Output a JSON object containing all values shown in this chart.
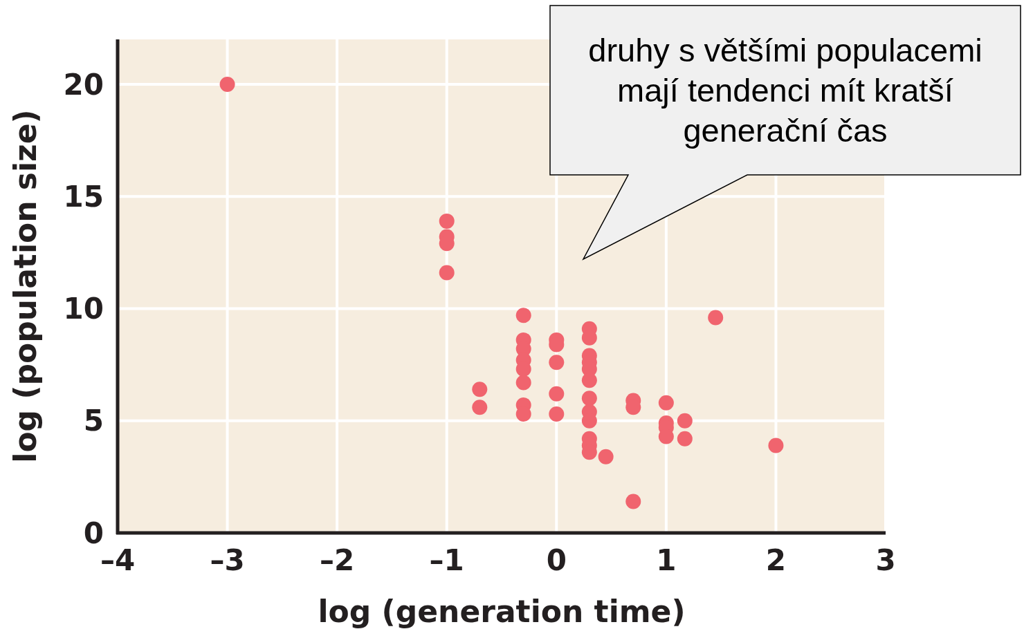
{
  "chart_data": {
    "type": "scatter",
    "xlabel": "log (generation time)",
    "ylabel": "log (population size)",
    "annotations": [
      "druhy s většími populacemi mají tendenci mít kratší generační čas"
    ],
    "x": [
      -3,
      -1,
      -1,
      -1,
      -1,
      -0.7,
      -0.7,
      -0.3,
      -0.3,
      -0.3,
      -0.3,
      -0.3,
      -0.3,
      -0.3,
      -0.3,
      0,
      0,
      0,
      0,
      0,
      0.3,
      0.3,
      0.3,
      0.3,
      0.3,
      0.3,
      0.3,
      0.3,
      0.3,
      0.3,
      0.3,
      0.3,
      0.45,
      0.7,
      0.7,
      0.7,
      1,
      1,
      1,
      1,
      1.17,
      1.17,
      1.45,
      2
    ],
    "values": [
      20,
      13.9,
      13.2,
      12.9,
      11.6,
      6.4,
      5.6,
      9.7,
      8.6,
      8.2,
      7.7,
      7.3,
      6.7,
      5.7,
      5.3,
      8.6,
      8.4,
      7.6,
      6.2,
      5.3,
      9.1,
      8.7,
      7.9,
      7.6,
      7.3,
      6.8,
      6.0,
      5.4,
      5.0,
      4.2,
      3.9,
      3.6,
      3.4,
      5.9,
      5.6,
      1.4,
      5.8,
      4.9,
      4.7,
      4.3,
      5.0,
      4.2,
      9.6,
      3.9
    ],
    "color": "#f0646e",
    "marker": "circle",
    "xlim": [
      -4,
      3
    ],
    "ylim": [
      0,
      22
    ],
    "xticks": [
      {
        "value": -4,
        "label": "–4"
      },
      {
        "value": -3,
        "label": "–3"
      },
      {
        "value": -2,
        "label": "–2"
      },
      {
        "value": -1,
        "label": "–1"
      },
      0,
      1,
      2,
      3
    ],
    "yticks": [
      0,
      5,
      10,
      15,
      20
    ],
    "grid": true
  }
}
